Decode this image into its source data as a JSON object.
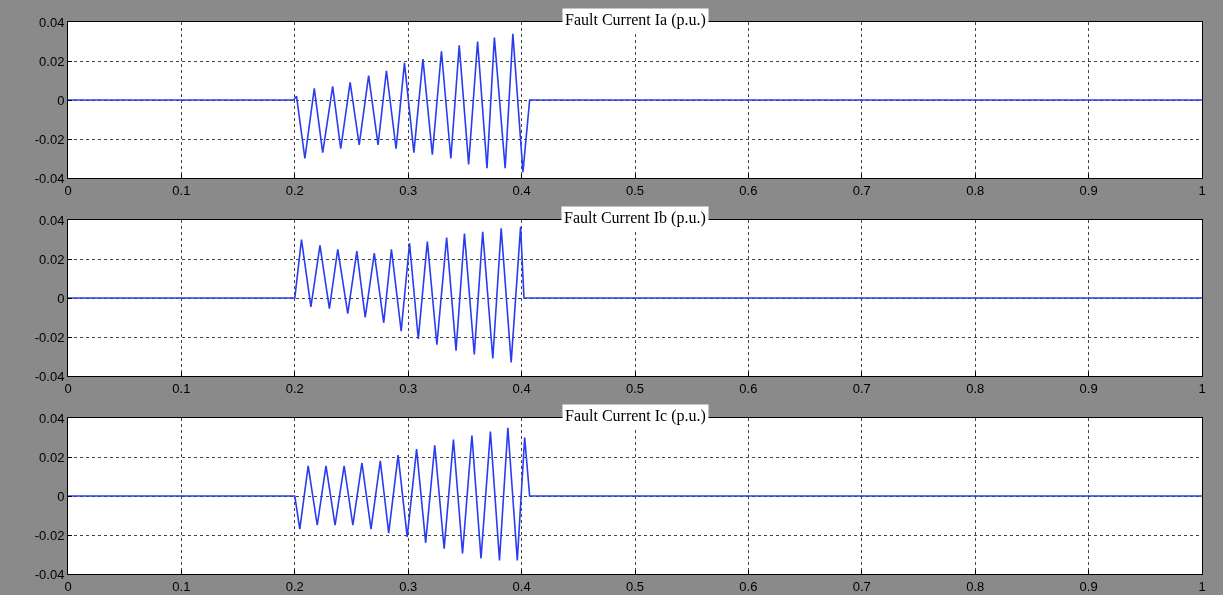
{
  "chart_data": [
    {
      "type": "line",
      "title": "Fault Current Ia (p.u.)",
      "xlim": [
        0,
        1
      ],
      "xticks": [
        0,
        0.1,
        0.2,
        0.3,
        0.4,
        0.5,
        0.6,
        0.7,
        0.8,
        0.9,
        1
      ],
      "ylim": [
        -0.04,
        0.04
      ],
      "yticks": [
        -0.04,
        -0.02,
        0,
        0.02,
        0.04
      ],
      "grid": true,
      "line_style": "solid",
      "series": [
        {
          "color": "#2a3cf0",
          "x": [
            0,
            0.199,
            0.2015,
            0.2089,
            0.2172,
            0.2246,
            0.2334,
            0.2405,
            0.2488,
            0.2568,
            0.2651,
            0.2734,
            0.2808,
            0.2893,
            0.2967,
            0.305,
            0.313,
            0.3213,
            0.3293,
            0.3376,
            0.345,
            0.3533,
            0.3612,
            0.3695,
            0.376,
            0.3855,
            0.3923,
            0.4012,
            0.4071,
            1
          ],
          "values": [
            0,
            0,
            0.002,
            -0.03,
            0.006,
            -0.027,
            0.007,
            -0.025,
            0.009,
            -0.023,
            0.0125,
            -0.023,
            0.015,
            -0.025,
            0.019,
            -0.027,
            0.021,
            -0.028,
            0.025,
            -0.03,
            0.028,
            -0.033,
            0.03,
            -0.035,
            0.032,
            -0.035,
            0.034,
            -0.037,
            0,
            0
          ]
        }
      ]
    },
    {
      "type": "line",
      "title": "Fault Current Ib (p.u.)",
      "xlim": [
        0,
        1
      ],
      "xticks": [
        0,
        0.1,
        0.2,
        0.3,
        0.4,
        0.5,
        0.6,
        0.7,
        0.8,
        0.9,
        1
      ],
      "ylim": [
        -0.04,
        0.04
      ],
      "yticks": [
        -0.04,
        -0.02,
        0,
        0.02,
        0.04
      ],
      "grid": true,
      "line_style": "solid",
      "series": [
        {
          "color": "#2a3cf0",
          "x": [
            0,
            0.2,
            0.2059,
            0.2142,
            0.2222,
            0.2305,
            0.2379,
            0.2467,
            0.2547,
            0.2621,
            0.2701,
            0.2784,
            0.2852,
            0.2938,
            0.3012,
            0.3089,
            0.3169,
            0.3253,
            0.3339,
            0.3422,
            0.3496,
            0.3583,
            0.3657,
            0.3746,
            0.382,
            0.3908,
            0.3991,
            0.4021,
            1
          ],
          "values": [
            0,
            0,
            0.03,
            -0.0045,
            0.027,
            -0.0055,
            0.025,
            -0.008,
            0.024,
            -0.01,
            0.023,
            -0.0127,
            0.025,
            -0.017,
            0.028,
            -0.021,
            0.029,
            -0.024,
            0.031,
            -0.027,
            0.033,
            -0.029,
            0.034,
            -0.031,
            0.0357,
            -0.033,
            0.0365,
            0,
            0
          ]
        }
      ]
    },
    {
      "type": "line",
      "title": "Fault Current Ic (p.u.)",
      "xlim": [
        0,
        1
      ],
      "xticks": [
        0,
        0.1,
        0.2,
        0.3,
        0.4,
        0.5,
        0.6,
        0.7,
        0.8,
        0.9,
        1
      ],
      "ylim": [
        -0.04,
        0.04
      ],
      "yticks": [
        -0.04,
        -0.02,
        0,
        0.02,
        0.04
      ],
      "grid": true,
      "line_style": "solid",
      "series": [
        {
          "color": "#2a3cf0",
          "x": [
            0,
            0.2,
            0.2044,
            0.2118,
            0.2198,
            0.2275,
            0.2355,
            0.2435,
            0.2512,
            0.2592,
            0.2672,
            0.2754,
            0.2828,
            0.2911,
            0.2991,
            0.3074,
            0.3154,
            0.3234,
            0.3317,
            0.3399,
            0.3479,
            0.3562,
            0.3642,
            0.3725,
            0.3805,
            0.3879,
            0.3962,
            0.4027,
            0.4071,
            1
          ],
          "values": [
            0,
            0,
            -0.017,
            0.0155,
            -0.015,
            0.0155,
            -0.015,
            0.0155,
            -0.015,
            0.017,
            -0.017,
            0.018,
            -0.019,
            0.021,
            -0.021,
            0.024,
            -0.024,
            0.026,
            -0.027,
            0.029,
            -0.0295,
            0.031,
            -0.032,
            0.033,
            -0.033,
            0.035,
            -0.033,
            0.03,
            0,
            0
          ]
        }
      ]
    }
  ]
}
